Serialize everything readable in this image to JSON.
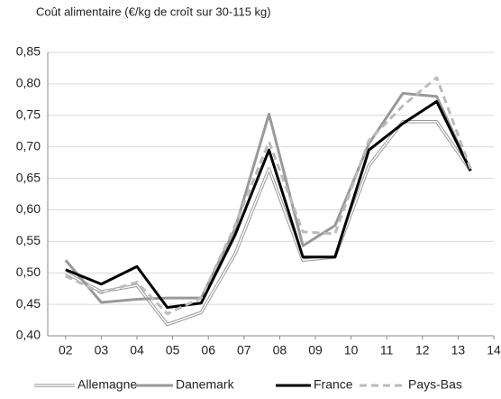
{
  "chart_data": {
    "type": "line",
    "title": "Coût alimentaire (€/kg de croît sur 30-115 kg)",
    "x": [
      2,
      3,
      4,
      4.85,
      5.8,
      6.75,
      7.7,
      8.65,
      9.55,
      10.5,
      11.45,
      12.4,
      13.35
    ],
    "series": [
      {
        "name": "Allemagne",
        "color": "#999999",
        "style": "double",
        "values": [
          0.5,
          0.47,
          0.48,
          0.418,
          0.437,
          0.53,
          0.665,
          0.52,
          0.525,
          0.67,
          0.74,
          0.74,
          0.662
        ]
      },
      {
        "name": "Danemark",
        "color": "#999999",
        "style": "solid",
        "values": [
          0.52,
          0.453,
          0.458,
          0.46,
          0.46,
          0.57,
          0.752,
          0.543,
          0.575,
          0.705,
          0.785,
          0.78,
          0.662
        ]
      },
      {
        "name": "France",
        "color": "#000000",
        "style": "solid",
        "values": [
          0.505,
          0.482,
          0.51,
          0.445,
          0.452,
          0.56,
          0.695,
          0.525,
          0.525,
          0.695,
          0.737,
          0.772,
          0.662
        ]
      },
      {
        "name": "Pays-Bas",
        "color": "#bbbbbb",
        "style": "dashed",
        "values": [
          0.495,
          0.468,
          0.485,
          0.435,
          0.46,
          0.575,
          0.708,
          0.565,
          0.562,
          0.71,
          0.765,
          0.81,
          0.665
        ]
      }
    ],
    "xlim": [
      1.5,
      14
    ],
    "xticks": [
      {
        "value": 2,
        "label": "02"
      },
      {
        "value": 3,
        "label": "03"
      },
      {
        "value": 4,
        "label": "04"
      },
      {
        "value": 5,
        "label": "05"
      },
      {
        "value": 6,
        "label": "06"
      },
      {
        "value": 7,
        "label": "07"
      },
      {
        "value": 8,
        "label": "08"
      },
      {
        "value": 9,
        "label": "09"
      },
      10,
      11,
      12,
      13,
      14
    ],
    "ylim": [
      0.4,
      0.85
    ],
    "yticks": [
      {
        "value": 0.4,
        "label": "0,40"
      },
      {
        "value": 0.45,
        "label": "0,45"
      },
      {
        "value": 0.5,
        "label": "0,50"
      },
      {
        "value": 0.55,
        "label": "0,55"
      },
      {
        "value": 0.6,
        "label": "0,60"
      },
      {
        "value": 0.65,
        "label": "0,65"
      },
      {
        "value": 0.7,
        "label": "0,70"
      },
      {
        "value": 0.75,
        "label": "0,75"
      },
      {
        "value": 0.8,
        "label": "0,80"
      },
      {
        "value": 0.85,
        "label": "0,85"
      }
    ],
    "grid": true,
    "legend": "bottom"
  }
}
